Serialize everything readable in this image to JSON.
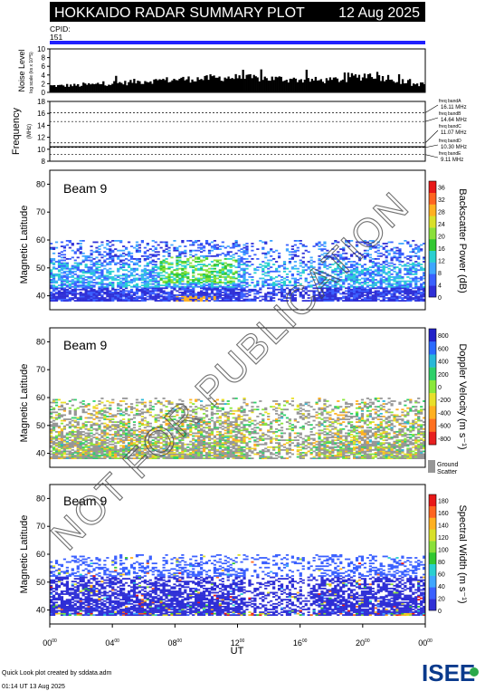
{
  "header": {
    "title": "HOKKAIDO RADAR SUMMARY PLOT",
    "date": "12 Aug 2025",
    "cpid_label": "CPID:",
    "cpid_value": "151"
  },
  "noise_panel": {
    "ylabel": "Noise Level",
    "ylabel_sub": "log scale (ks x 10^5)",
    "yticks": [
      "0",
      "2",
      "4",
      "6",
      "8",
      "10"
    ],
    "ylim": [
      0,
      10
    ]
  },
  "frequency_panel": {
    "ylabel": "Frequency",
    "ylabel_unit": "(MHz)",
    "yticks": [
      "8",
      "10",
      "12",
      "14",
      "16",
      "18"
    ],
    "ylim": [
      8,
      18
    ],
    "bands": [
      {
        "name": "freq bandA",
        "value": "16.11 MHz"
      },
      {
        "name": "freq bandB",
        "value": "14.64 MHz"
      },
      {
        "name": "freq bandC",
        "value": "11.07 MHz"
      },
      {
        "name": "freq bandD",
        "value": "10.30 MHz"
      },
      {
        "name": "freq bandE",
        "value": "9.11 MHz"
      }
    ]
  },
  "panels": [
    {
      "beam": "Beam  9",
      "ylabel": "Magnetic Latitude",
      "cbar_label": "Backscatter Power (dB)",
      "cbar_ticks": [
        "0",
        "4",
        "8",
        "12",
        "16",
        "20",
        "24",
        "28",
        "32",
        "36"
      ]
    },
    {
      "beam": "Beam  9",
      "ylabel": "Magnetic Latitude",
      "cbar_label": "Doppler Velocity (m s⁻¹)",
      "cbar_ticks": [
        "800",
        "600",
        "400",
        "200",
        "0",
        "-200",
        "-400",
        "-600",
        "-800"
      ],
      "ground_scatter": [
        "Ground",
        "Scatter"
      ]
    },
    {
      "beam": "Beam  9",
      "ylabel": "Magnetic Latitude",
      "cbar_label": "Spectral Width (m s⁻¹)",
      "cbar_ticks": [
        "0",
        "20",
        "40",
        "60",
        "80",
        "100",
        "120",
        "140",
        "160",
        "180"
      ]
    }
  ],
  "x_axis": {
    "label": "UT",
    "ticks": [
      [
        "00",
        "00"
      ],
      [
        "04",
        "00"
      ],
      [
        "08",
        "00"
      ],
      [
        "12",
        "00"
      ],
      [
        "16",
        "00"
      ],
      [
        "20",
        "00"
      ],
      [
        "00",
        "00"
      ]
    ]
  },
  "footer": {
    "line1": "Quick Look plot created by sddata.adm",
    "line2": "01:14 UT 13 Aug 2025",
    "logo": "ISEE"
  },
  "watermark": "NOT FOR PUBLICATION",
  "chart_data": {
    "type": "heatmap",
    "title": "HOKKAIDO RADAR SUMMARY PLOT",
    "x": "UT hours",
    "xlim": [
      0,
      24
    ],
    "ylim": [
      35,
      85
    ],
    "latitude_ticks": [
      "40",
      "50",
      "60",
      "70",
      "80"
    ],
    "scatter_band": {
      "lat_min": 38,
      "lat_max": 60
    },
    "noise_mean": [
      1.6,
      1.7,
      1.9,
      2.1,
      2.3,
      2.6,
      2.8,
      3.0,
      3.2,
      3.3,
      3.5,
      3.6,
      3.5,
      3.4,
      3.3,
      3.1,
      3.0,
      2.9,
      3.1,
      3.8,
      4.2,
      3.6,
      2.6,
      2.0
    ],
    "frequency_mhz": 10.4,
    "colors": {
      "title_bar": "#000000",
      "cpid_bar": "#2020ff",
      "ground_scatter": "#969696"
    }
  }
}
